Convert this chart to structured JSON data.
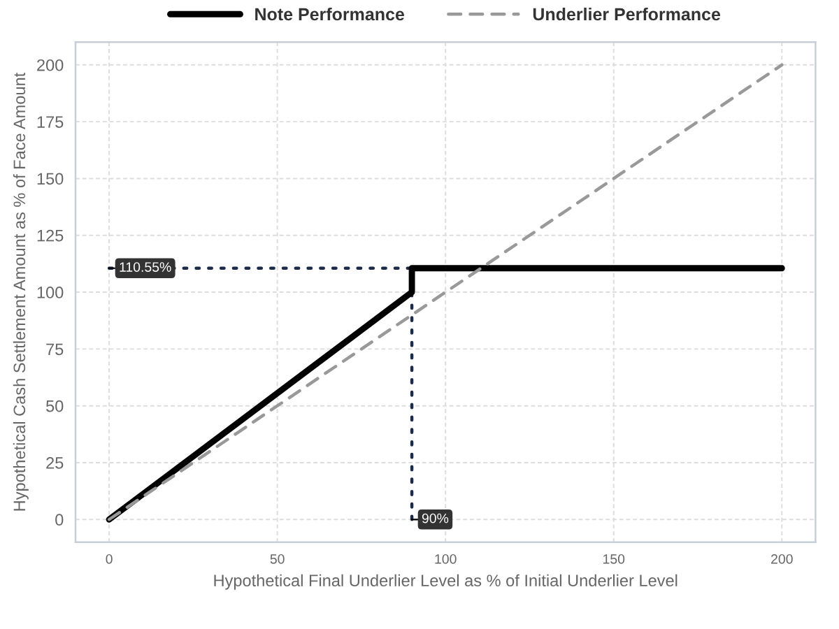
{
  "chart_data": {
    "type": "line",
    "xlabel": "Hypothetical Final Underlier Level as % of Initial Underlier Level",
    "ylabel": "Hypothetical Cash Settlement Amount as % of Face Amount",
    "xlim": [
      -10,
      210
    ],
    "xticks": [
      0,
      50,
      100,
      150,
      200
    ],
    "ylim": [
      -10,
      210
    ],
    "yticks": [
      0,
      25,
      50,
      75,
      100,
      125,
      150,
      175,
      200
    ],
    "grid": true,
    "legend": "top",
    "marker": "none",
    "series": [
      {
        "color": "#1c2b4a",
        "x": [
          0,
          90
        ],
        "values": [
          110.55,
          110.55
        ],
        "line_style": "dotted"
      },
      {
        "color": "#1c2b4a",
        "x": [
          90,
          90
        ],
        "values": [
          0,
          110.55
        ],
        "line_style": "dotted"
      },
      {
        "name": "Note Performance",
        "color": "#000000",
        "x": [
          0,
          90,
          90,
          200
        ],
        "values": [
          0,
          100,
          110.55,
          110.55
        ],
        "line_style": "solid"
      },
      {
        "name": "Underlier Performance",
        "color": "#999999",
        "x": [
          0,
          200
        ],
        "values": [
          0,
          200
        ],
        "line_style": "dashed"
      }
    ],
    "annotations": [
      {
        "text": "110.55%",
        "x": 0,
        "y": 110.55
      },
      {
        "text": "90%",
        "x": 90,
        "y": 0
      }
    ]
  }
}
